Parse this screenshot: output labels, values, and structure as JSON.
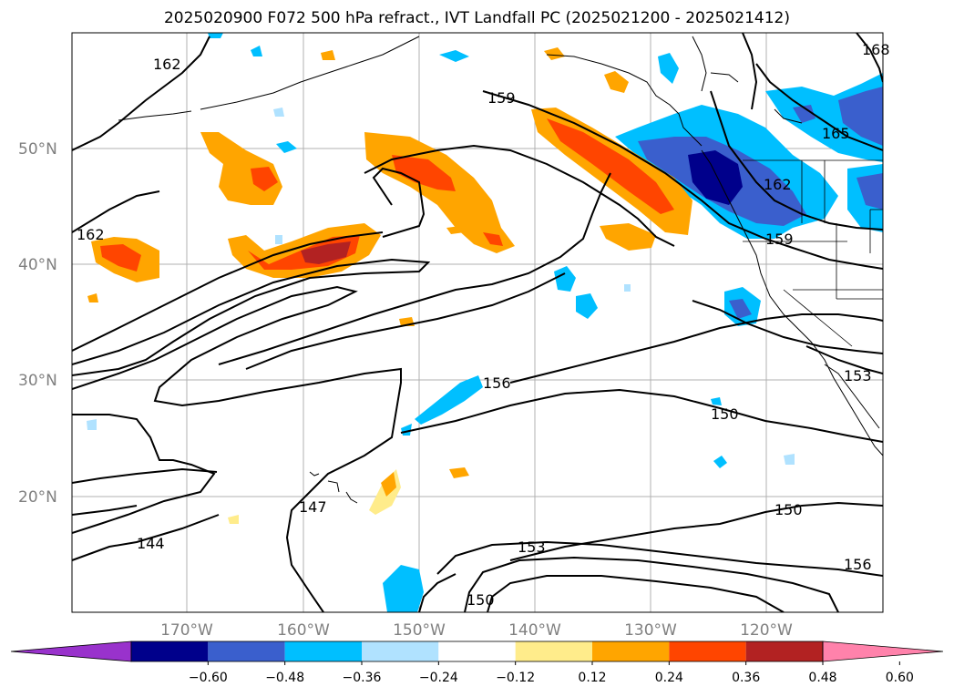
{
  "title": "2025020900 F072 500 hPa refract., IVT Landfall PC (2025021200 - 2025021412)",
  "map": {
    "lat_labels": [
      "50°N",
      "40°N",
      "30°N",
      "20°N"
    ],
    "lon_labels": [
      "170°W",
      "160°W",
      "150°W",
      "140°W",
      "130°W",
      "120°W"
    ],
    "contour_labels": [
      "162",
      "159",
      "165",
      "162",
      "162",
      "159",
      "156",
      "153",
      "150",
      "150",
      "153",
      "156",
      "147",
      "144",
      "150",
      "168"
    ]
  },
  "colorbar": {
    "ticks": [
      "−0.60",
      "−0.48",
      "−0.36",
      "−0.24",
      "−0.12",
      "0.12",
      "0.24",
      "0.36",
      "0.48",
      "0.60"
    ],
    "colors": [
      "#9932cc",
      "#00008b",
      "#3a5fcd",
      "#00bfff",
      "#b0e2ff",
      "#ffffff",
      "#ffec8b",
      "#ffa500",
      "#ff4500",
      "#b22222",
      "#ff82ab"
    ]
  }
}
